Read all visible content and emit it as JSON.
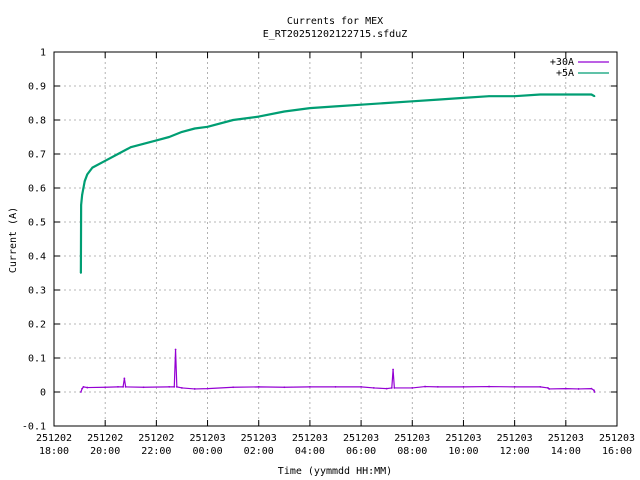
{
  "chart_data": {
    "type": "line",
    "title": "Currents for MEX",
    "subtitle": "E_RT20251202122715.sfduZ",
    "xlabel": "Time (yymmdd HH:MM)",
    "ylabel": "Current (A)",
    "ylim": [
      -0.1,
      1.0
    ],
    "xlim_hours": [
      18,
      40
    ],
    "grid": true,
    "legend_position": "top-right",
    "y_ticks": [
      {
        "value": -0.1,
        "label": "-0.1"
      },
      {
        "value": 0,
        "label": "0"
      },
      {
        "value": 0.1,
        "label": "0.1"
      },
      {
        "value": 0.2,
        "label": "0.2"
      },
      {
        "value": 0.3,
        "label": "0.3"
      },
      {
        "value": 0.4,
        "label": "0.4"
      },
      {
        "value": 0.5,
        "label": "0.5"
      },
      {
        "value": 0.6,
        "label": "0.6"
      },
      {
        "value": 0.7,
        "label": "0.7"
      },
      {
        "value": 0.8,
        "label": "0.8"
      },
      {
        "value": 0.9,
        "label": "0.9"
      },
      {
        "value": 1.0,
        "label": "1"
      }
    ],
    "x_ticks": [
      {
        "hour": 18,
        "date": "251202",
        "time": "18:00"
      },
      {
        "hour": 20,
        "date": "251202",
        "time": "20:00"
      },
      {
        "hour": 22,
        "date": "251202",
        "time": "22:00"
      },
      {
        "hour": 24,
        "date": "251203",
        "time": "00:00"
      },
      {
        "hour": 26,
        "date": "251203",
        "time": "02:00"
      },
      {
        "hour": 28,
        "date": "251203",
        "time": "04:00"
      },
      {
        "hour": 30,
        "date": "251203",
        "time": "06:00"
      },
      {
        "hour": 32,
        "date": "251203",
        "time": "08:00"
      },
      {
        "hour": 34,
        "date": "251203",
        "time": "10:00"
      },
      {
        "hour": 36,
        "date": "251203",
        "time": "12:00"
      },
      {
        "hour": 38,
        "date": "251203",
        "time": "14:00"
      },
      {
        "hour": 40,
        "date": "251203",
        "time": "16:00"
      }
    ],
    "series": [
      {
        "name": "+30A",
        "color": "#9400d3",
        "x_hours": [
          19.05,
          19.1,
          19.15,
          19.3,
          20.0,
          20.5,
          20.7,
          20.75,
          20.8,
          21.5,
          22.5,
          22.7,
          22.75,
          22.8,
          23.0,
          23.5,
          24.0,
          25.0,
          26.0,
          27.0,
          28.0,
          29.0,
          30.0,
          30.5,
          31.0,
          31.2,
          31.25,
          31.3,
          32.0,
          32.5,
          33.0,
          34.0,
          35.0,
          36.0,
          37.0,
          37.3,
          37.35,
          38.0,
          38.5,
          39.0,
          39.1,
          39.12
        ],
        "y_values": [
          0.0,
          0.01,
          0.015,
          0.013,
          0.014,
          0.015,
          0.015,
          0.04,
          0.015,
          0.014,
          0.015,
          0.015,
          0.125,
          0.015,
          0.012,
          0.009,
          0.01,
          0.014,
          0.015,
          0.014,
          0.015,
          0.015,
          0.015,
          0.012,
          0.01,
          0.012,
          0.066,
          0.012,
          0.012,
          0.016,
          0.015,
          0.015,
          0.016,
          0.015,
          0.015,
          0.012,
          0.009,
          0.01,
          0.009,
          0.01,
          0.005,
          0.0
        ]
      },
      {
        "name": "+5A",
        "color": "#009e73",
        "x_hours": [
          19.05,
          19.06,
          19.1,
          19.2,
          19.3,
          19.5,
          20.0,
          20.5,
          21.0,
          21.5,
          22.0,
          22.5,
          23.0,
          23.5,
          24.0,
          25.0,
          26.0,
          27.0,
          28.0,
          29.0,
          30.0,
          31.0,
          32.0,
          33.0,
          34.0,
          35.0,
          36.0,
          37.0,
          38.0,
          39.0,
          39.12
        ],
        "y_values": [
          0.35,
          0.55,
          0.58,
          0.62,
          0.64,
          0.66,
          0.68,
          0.7,
          0.72,
          0.73,
          0.74,
          0.75,
          0.765,
          0.775,
          0.78,
          0.8,
          0.81,
          0.825,
          0.835,
          0.84,
          0.845,
          0.85,
          0.855,
          0.86,
          0.865,
          0.87,
          0.87,
          0.875,
          0.875,
          0.875,
          0.87
        ]
      }
    ]
  }
}
